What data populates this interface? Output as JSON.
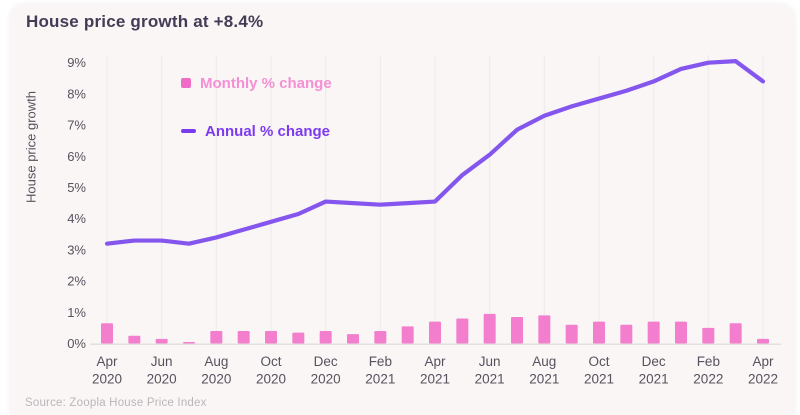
{
  "card": {
    "title": "House price growth at +8.4%",
    "source": "Source: Zoopla House Price Index"
  },
  "legend": [
    {
      "label": "Monthly % change",
      "marker": "square",
      "marker_color": "#ef6cc7",
      "text_color": "#f48fd4"
    },
    {
      "label": "Annual % change",
      "marker": "dash",
      "marker_color": "#7a3bee",
      "text_color": "#7c3bf0"
    }
  ],
  "chart_data": {
    "type": "bar+line",
    "title": "House price growth at +8.4%",
    "ylabel": "House price growth",
    "xlabel": "",
    "ylim": [
      0,
      9
    ],
    "yticks": [
      "0%",
      "1%",
      "2%",
      "3%",
      "4%",
      "5%",
      "6%",
      "7%",
      "8%",
      "9%"
    ],
    "grid": "vertical-light",
    "legend_position": "top-left-inside",
    "categories": [
      "Apr 2020",
      "May 2020",
      "Jun 2020",
      "Jul 2020",
      "Aug 2020",
      "Sep 2020",
      "Oct 2020",
      "Nov 2020",
      "Dec 2020",
      "Jan 2021",
      "Feb 2021",
      "Mar 2021",
      "Apr 2021",
      "May 2021",
      "Jun 2021",
      "Jul 2021",
      "Aug 2021",
      "Sep 2021",
      "Oct 2021",
      "Nov 2021",
      "Dec 2021",
      "Jan 2022",
      "Feb 2022",
      "Mar 2022",
      "Apr 2022"
    ],
    "x_tick_labels": [
      "Apr 2020",
      "Jun 2020",
      "Aug 2020",
      "Oct 2020",
      "Dec 2020",
      "Feb 2021",
      "Apr 2021",
      "Jun 2021",
      "Aug 2021",
      "Oct 2021",
      "Dec 2021",
      "Feb 2022",
      "Apr 2022"
    ],
    "series": [
      {
        "name": "Monthly % change",
        "type": "bar",
        "color": "#f27ecd",
        "values": [
          0.65,
          0.25,
          0.15,
          0.05,
          0.4,
          0.4,
          0.4,
          0.35,
          0.4,
          0.3,
          0.4,
          0.55,
          0.7,
          0.8,
          0.95,
          0.85,
          0.9,
          0.6,
          0.7,
          0.6,
          0.7,
          0.7,
          0.5,
          0.65,
          0.15
        ]
      },
      {
        "name": "Annual % change",
        "type": "line",
        "color": "#8456ee",
        "values": [
          3.2,
          3.3,
          3.3,
          3.2,
          3.4,
          3.65,
          3.9,
          4.15,
          4.55,
          4.5,
          4.45,
          4.5,
          4.55,
          5.4,
          6.05,
          6.85,
          7.3,
          7.6,
          7.85,
          8.1,
          8.4,
          8.8,
          9.0,
          9.05,
          8.4
        ]
      }
    ]
  },
  "colors": {
    "card_bg": "#faf6f5",
    "title_text": "#443b56",
    "axis_text": "#56525f",
    "gridline": "#efeceb",
    "baseline": "#e4e0e0",
    "source_text": "#b9b6bb"
  }
}
